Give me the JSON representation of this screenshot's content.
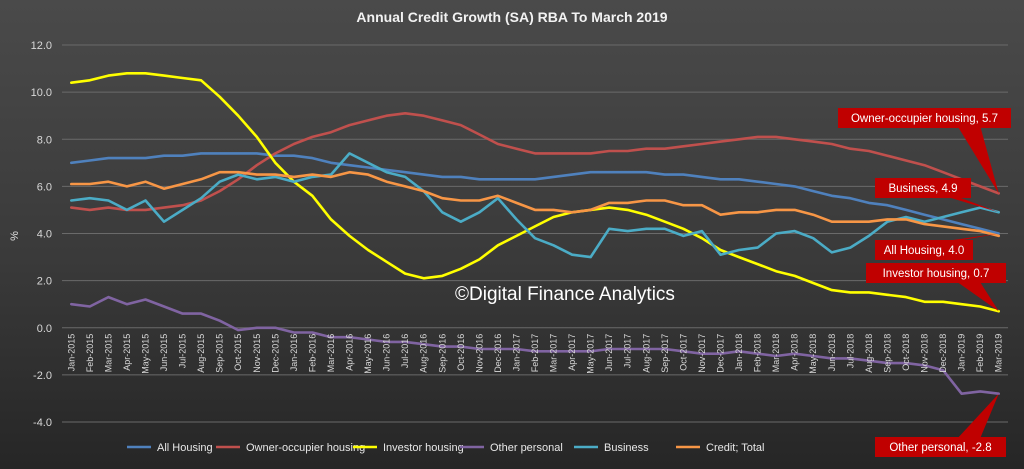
{
  "chart_data": {
    "type": "line",
    "title": "Annual Credit Growth (SA) RBA To March 2019",
    "xlabel": "",
    "ylabel": "%",
    "ylim": [
      -4.0,
      12.0
    ],
    "y_ticks": [
      "12.0",
      "10.0",
      "8.0",
      "6.0",
      "4.0",
      "2.0",
      "0.0",
      "-2.0",
      "-4.0"
    ],
    "y_tick_values": [
      12,
      10,
      8,
      6,
      4,
      2,
      0,
      -2,
      -4
    ],
    "grid": true,
    "legend_position": "bottom",
    "watermark": "©Digital Finance Analytics",
    "categories": [
      "Jan-2015",
      "Feb-2015",
      "Mar-2015",
      "Apr-2015",
      "May-2015",
      "Jun-2015",
      "Jul-2015",
      "Aug-2015",
      "Sep-2015",
      "Oct-2015",
      "Nov-2015",
      "Dec-2015",
      "Jan-2016",
      "Feb-2016",
      "Mar-2016",
      "Apr-2016",
      "May-2016",
      "Jun-2016",
      "Jul-2016",
      "Aug-2016",
      "Sep-2016",
      "Oct-2016",
      "Nov-2016",
      "Dec-2016",
      "Jan-2017",
      "Feb-2017",
      "Mar-2017",
      "Apr-2017",
      "May-2017",
      "Jun-2017",
      "Jul-2017",
      "Aug-2017",
      "Sep-2017",
      "Oct-2017",
      "Nov-2017",
      "Dec-2017",
      "Jan-2018",
      "Feb-2018",
      "Mar-2018",
      "Apr-2018",
      "May-2018",
      "Jun-2018",
      "Jul-2018",
      "Aug-2018",
      "Sep-2018",
      "Oct-2018",
      "Nov-2018",
      "Dec-2018",
      "Jan-2019",
      "Feb-2019",
      "Mar-2019"
    ],
    "series": [
      {
        "name": "All Housing",
        "color": "#4f81bd",
        "values": [
          7.0,
          7.1,
          7.2,
          7.2,
          7.2,
          7.3,
          7.3,
          7.4,
          7.4,
          7.4,
          7.4,
          7.3,
          7.3,
          7.2,
          7.0,
          6.9,
          6.8,
          6.7,
          6.6,
          6.5,
          6.4,
          6.4,
          6.3,
          6.3,
          6.3,
          6.3,
          6.4,
          6.5,
          6.6,
          6.6,
          6.6,
          6.6,
          6.5,
          6.5,
          6.4,
          6.3,
          6.3,
          6.2,
          6.1,
          6.0,
          5.8,
          5.6,
          5.5,
          5.3,
          5.2,
          5.0,
          4.8,
          4.6,
          4.4,
          4.2,
          4.0
        ]
      },
      {
        "name": "Owner-occupier housing",
        "color": "#c0504d",
        "values": [
          5.1,
          5.0,
          5.1,
          5.0,
          5.0,
          5.1,
          5.2,
          5.4,
          5.8,
          6.3,
          6.9,
          7.4,
          7.8,
          8.1,
          8.3,
          8.6,
          8.8,
          9.0,
          9.1,
          9.0,
          8.8,
          8.6,
          8.2,
          7.8,
          7.6,
          7.4,
          7.4,
          7.4,
          7.4,
          7.5,
          7.5,
          7.6,
          7.6,
          7.7,
          7.8,
          7.9,
          8.0,
          8.1,
          8.1,
          8.0,
          7.9,
          7.8,
          7.6,
          7.5,
          7.3,
          7.1,
          6.9,
          6.6,
          6.3,
          6.0,
          5.7
        ]
      },
      {
        "name": "Investor housing",
        "color": "#ffff00",
        "values": [
          10.4,
          10.5,
          10.7,
          10.8,
          10.8,
          10.7,
          10.6,
          10.5,
          9.8,
          9.0,
          8.1,
          7.0,
          6.2,
          5.6,
          4.6,
          3.9,
          3.3,
          2.8,
          2.3,
          2.1,
          2.2,
          2.5,
          2.9,
          3.5,
          3.9,
          4.3,
          4.7,
          4.9,
          5.0,
          5.1,
          5.0,
          4.8,
          4.5,
          4.2,
          3.8,
          3.3,
          3.0,
          2.7,
          2.4,
          2.2,
          1.9,
          1.6,
          1.5,
          1.5,
          1.4,
          1.3,
          1.1,
          1.1,
          1.0,
          0.9,
          0.7
        ]
      },
      {
        "name": "Other personal",
        "color": "#8064a2",
        "values": [
          1.0,
          0.9,
          1.3,
          1.0,
          1.2,
          0.9,
          0.6,
          0.6,
          0.3,
          -0.1,
          0.0,
          0.0,
          -0.2,
          -0.2,
          -0.4,
          -0.4,
          -0.5,
          -0.6,
          -0.6,
          -0.7,
          -0.8,
          -0.8,
          -0.9,
          -0.9,
          -0.9,
          -1.0,
          -1.0,
          -1.0,
          -1.0,
          -0.9,
          -0.9,
          -0.9,
          -0.9,
          -1.0,
          -1.1,
          -1.1,
          -1.0,
          -1.1,
          -1.2,
          -1.1,
          -1.2,
          -1.3,
          -1.3,
          -1.4,
          -1.5,
          -1.5,
          -1.6,
          -1.8,
          -2.8,
          -2.7,
          -2.8
        ]
      },
      {
        "name": "Business",
        "color": "#4bacc6",
        "values": [
          5.4,
          5.5,
          5.4,
          5.0,
          5.4,
          4.5,
          5.0,
          5.5,
          6.2,
          6.5,
          6.3,
          6.4,
          6.2,
          6.4,
          6.5,
          7.4,
          7.0,
          6.6,
          6.4,
          5.8,
          4.9,
          4.5,
          4.9,
          5.5,
          4.6,
          3.8,
          3.5,
          3.1,
          3.0,
          4.2,
          4.1,
          4.2,
          4.2,
          3.9,
          4.1,
          3.1,
          3.3,
          3.4,
          4.0,
          4.1,
          3.8,
          3.2,
          3.4,
          3.9,
          4.5,
          4.7,
          4.5,
          4.7,
          4.9,
          5.1,
          4.9
        ]
      },
      {
        "name": "Credit; Total",
        "color": "#f79646",
        "values": [
          6.1,
          6.1,
          6.2,
          6.0,
          6.2,
          5.9,
          6.1,
          6.3,
          6.6,
          6.6,
          6.5,
          6.5,
          6.4,
          6.5,
          6.4,
          6.6,
          6.5,
          6.2,
          6.0,
          5.8,
          5.5,
          5.4,
          5.4,
          5.6,
          5.3,
          5.0,
          5.0,
          4.9,
          5.0,
          5.3,
          5.3,
          5.4,
          5.4,
          5.2,
          5.2,
          4.8,
          4.9,
          4.9,
          5.0,
          5.0,
          4.8,
          4.5,
          4.5,
          4.5,
          4.6,
          4.6,
          4.4,
          4.3,
          4.2,
          4.1,
          3.9
        ]
      }
    ],
    "annotations": [
      {
        "text": "Owner-occupier housing, 5.7",
        "series": "Owner-occupier housing",
        "value": 5.7
      },
      {
        "text": "Business, 4.9",
        "series": "Business",
        "value": 4.9
      },
      {
        "text": "All Housing, 4.0",
        "series": "All Housing",
        "value": 4.0
      },
      {
        "text": "Investor housing, 0.7",
        "series": "Investor housing",
        "value": 0.7
      },
      {
        "text": "Other personal, -2.8",
        "series": "Other personal",
        "value": -2.8
      }
    ]
  }
}
